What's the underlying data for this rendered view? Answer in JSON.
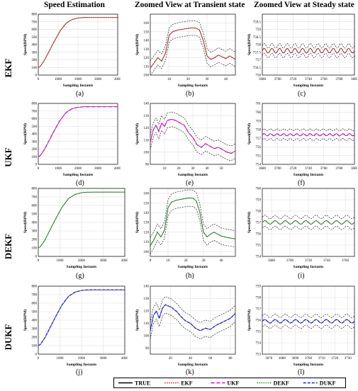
{
  "columns": [
    "Speed Estimation",
    "Zoomed View at Transient state",
    "Zoomed View at Steady state"
  ],
  "rows": [
    "EKF",
    "UKF",
    "DEKF",
    "DUKF"
  ],
  "ylabel": "Speed(RPM)",
  "xlabel": "Sampling Instants",
  "legend": [
    {
      "label": "TRUE",
      "color": "#000000",
      "dash": ""
    },
    {
      "label": "EKF",
      "color": "#e31a1c",
      "dash": "1.5,1.5"
    },
    {
      "label": "UKF",
      "color": "#e600e6",
      "dash": "5,3"
    },
    {
      "label": "DEKF",
      "color": "#1a9a1a",
      "dash": "1.5,1.5"
    },
    {
      "label": "DUKF",
      "color": "#1a1aff",
      "dash": "4,2"
    }
  ],
  "chart_data": [
    {
      "id": "a",
      "label": "(a)",
      "type": "line",
      "series": "EKF",
      "color": "#e31a1c",
      "xlim": [
        0,
        4000
      ],
      "ylim": [
        0,
        800
      ],
      "xticks": [
        0,
        1000,
        2000,
        3000,
        4000
      ],
      "yticks": [
        0,
        100,
        200,
        300,
        400,
        500,
        600,
        700,
        800
      ],
      "x": [
        0,
        100,
        300,
        500,
        800,
        1100,
        1400,
        1700,
        2000,
        2300,
        2600,
        3000,
        3500,
        4000
      ],
      "y": [
        100,
        115,
        190,
        290,
        440,
        580,
        680,
        730,
        750,
        756,
        757,
        757,
        757,
        757
      ]
    },
    {
      "id": "b",
      "label": "(b)",
      "type": "line",
      "series": "EKF",
      "color": "#e31a1c",
      "band": true,
      "xlim": [
        0,
        45
      ],
      "ylim": [
        100,
        170
      ],
      "xticks": [
        10,
        20,
        30,
        40
      ],
      "yticks": [
        100,
        110,
        120,
        130,
        140,
        150,
        160
      ],
      "x": [
        0,
        2,
        4,
        6,
        8,
        10,
        12,
        15,
        18,
        21,
        24,
        26,
        28,
        30,
        32,
        34,
        36,
        38,
        40,
        42,
        45
      ],
      "y": [
        108,
        114,
        120,
        116,
        125,
        146,
        150,
        152,
        153,
        154,
        154,
        152,
        140,
        122,
        118,
        120,
        123,
        121,
        119,
        122,
        118
      ]
    },
    {
      "id": "c",
      "label": "(c)",
      "type": "line",
      "series": "EKF",
      "color": "#e31a1c",
      "band": true,
      "wave": true,
      "xlim": [
        3680,
        3800
      ],
      "ylim": [
        756,
        760
      ],
      "xticks": [
        3680,
        3700,
        3720,
        3740,
        3760,
        3780,
        3800
      ],
      "yticks": [
        756,
        756.5,
        757,
        757.5,
        758,
        758.5,
        759,
        759.5
      ],
      "mean": 757.6,
      "amp": 0.15,
      "periods": 12
    },
    {
      "id": "d",
      "label": "(d)",
      "type": "line",
      "series": "UKF",
      "color": "#e600e6",
      "xlim": [
        0,
        4000
      ],
      "ylim": [
        0,
        800
      ],
      "xticks": [
        0,
        1000,
        2000,
        3000,
        4000
      ],
      "yticks": [
        0,
        100,
        200,
        300,
        400,
        500,
        600,
        700,
        800
      ],
      "x": [
        0,
        100,
        300,
        500,
        800,
        1100,
        1400,
        1700,
        2000,
        2300,
        2600,
        3000,
        3500,
        4000
      ],
      "y": [
        100,
        115,
        190,
        290,
        440,
        580,
        680,
        730,
        750,
        756,
        757,
        757,
        757,
        757
      ]
    },
    {
      "id": "e",
      "label": "(e)",
      "type": "line",
      "series": "UKF",
      "color": "#e600e6",
      "band": true,
      "xlim": [
        0,
        60
      ],
      "ylim": [
        90,
        140
      ],
      "xticks": [
        10,
        20,
        30,
        40,
        50
      ],
      "yticks": [
        90,
        100,
        110,
        120,
        130,
        140
      ],
      "x": [
        0,
        2,
        4,
        6,
        8,
        10,
        12,
        15,
        18,
        21,
        24,
        27,
        30,
        33,
        36,
        39,
        42,
        45,
        48,
        51,
        54,
        57,
        60
      ],
      "y": [
        108,
        118,
        122,
        117,
        124,
        121,
        126,
        127,
        126,
        124,
        122,
        116,
        112,
        106,
        104,
        107,
        105,
        103,
        104,
        102,
        100,
        99,
        101
      ]
    },
    {
      "id": "f",
      "label": "(f)",
      "type": "line",
      "series": "UKF",
      "color": "#e600e6",
      "band": true,
      "wave": true,
      "xlim": [
        3680,
        3800
      ],
      "ylim": [
        754,
        761
      ],
      "xticks": [
        3680,
        3700,
        3720,
        3740,
        3760,
        3780,
        3800
      ],
      "yticks": [
        754,
        755,
        756,
        757,
        758,
        759,
        760,
        761
      ],
      "mean": 757.4,
      "amp": 0.12,
      "periods": 14
    },
    {
      "id": "g",
      "label": "(g)",
      "type": "line",
      "series": "DEKF",
      "color": "#1a9a1a",
      "xlim": [
        0,
        4000
      ],
      "ylim": [
        0,
        800
      ],
      "xticks": [
        0,
        1000,
        2000,
        3000,
        4000
      ],
      "yticks": [
        0,
        100,
        200,
        300,
        400,
        500,
        600,
        700,
        800
      ],
      "x": [
        0,
        100,
        300,
        500,
        800,
        1100,
        1400,
        1700,
        2000,
        2300,
        2600,
        3000,
        3500,
        4000
      ],
      "y": [
        100,
        115,
        190,
        290,
        440,
        580,
        680,
        730,
        750,
        756,
        757,
        757,
        757,
        757
      ]
    },
    {
      "id": "h",
      "label": "(h)",
      "type": "line",
      "series": "DEKF",
      "color": "#1a9a1a",
      "band": true,
      "xlim": [
        0,
        48
      ],
      "ylim": [
        95,
        165
      ],
      "xticks": [
        0,
        10,
        20,
        30,
        40
      ],
      "yticks": [
        100,
        110,
        120,
        130,
        140,
        150,
        160
      ],
      "x": [
        0,
        2,
        4,
        6,
        8,
        10,
        12,
        15,
        18,
        21,
        24,
        26,
        28,
        30,
        32,
        34,
        36,
        38,
        40,
        42,
        45,
        48
      ],
      "y": [
        106,
        112,
        120,
        115,
        122,
        145,
        151,
        153,
        154,
        155,
        155,
        152,
        140,
        120,
        115,
        118,
        120,
        118,
        116,
        115,
        114,
        113
      ]
    },
    {
      "id": "i",
      "label": "(i)",
      "type": "line",
      "series": "DEKF",
      "color": "#1a9a1a",
      "band": true,
      "wave": true,
      "xlim": [
        3670,
        3770
      ],
      "ylim": [
        754,
        760
      ],
      "xticks": [
        3680,
        3700,
        3720,
        3740,
        3760
      ],
      "yticks": [
        754,
        755,
        756,
        757,
        758,
        759,
        760
      ],
      "mean": 757.0,
      "amp": 0.15,
      "periods": 9
    },
    {
      "id": "j",
      "label": "(j)",
      "type": "line",
      "series": "DUKF",
      "color": "#1a1aff",
      "xlim": [
        0,
        4000
      ],
      "ylim": [
        0,
        800
      ],
      "xticks": [
        0,
        1000,
        2000,
        3000,
        4000
      ],
      "yticks": [
        0,
        100,
        200,
        300,
        400,
        500,
        600,
        700,
        800
      ],
      "x": [
        0,
        100,
        300,
        500,
        800,
        1100,
        1400,
        1700,
        2000,
        2300,
        2600,
        3000,
        3500,
        4000
      ],
      "y": [
        100,
        115,
        190,
        290,
        440,
        580,
        680,
        730,
        750,
        756,
        757,
        757,
        757,
        757
      ]
    },
    {
      "id": "k",
      "label": "(k)",
      "type": "line",
      "series": "DUKF",
      "color": "#1a1aff",
      "band": true,
      "xlim": [
        0,
        85
      ],
      "ylim": [
        85,
        140
      ],
      "xticks": [
        20,
        40,
        60,
        80
      ],
      "yticks": [
        90,
        100,
        110,
        120,
        130,
        140
      ],
      "x": [
        0,
        3,
        6,
        9,
        12,
        15,
        18,
        21,
        24,
        27,
        30,
        35,
        40,
        45,
        50,
        55,
        60,
        65,
        70,
        75,
        80,
        85
      ],
      "y": [
        104,
        116,
        120,
        114,
        122,
        125,
        124,
        123,
        121,
        119,
        116,
        112,
        110,
        106,
        104,
        106,
        105,
        108,
        110,
        112,
        114,
        118
      ]
    },
    {
      "id": "l",
      "label": "(l)",
      "type": "line",
      "series": "DUKF",
      "color": "#1a1aff",
      "band": true,
      "wave": true,
      "xlim": [
        3665,
        3735
      ],
      "ylim": [
        753,
        759
      ],
      "xticks": [
        3670,
        3680,
        3690,
        3700,
        3710,
        3720,
        3730
      ],
      "yticks": [
        753,
        754,
        755,
        756,
        757,
        758,
        759
      ],
      "mean": 755.9,
      "amp": 0.15,
      "periods": 9
    }
  ]
}
